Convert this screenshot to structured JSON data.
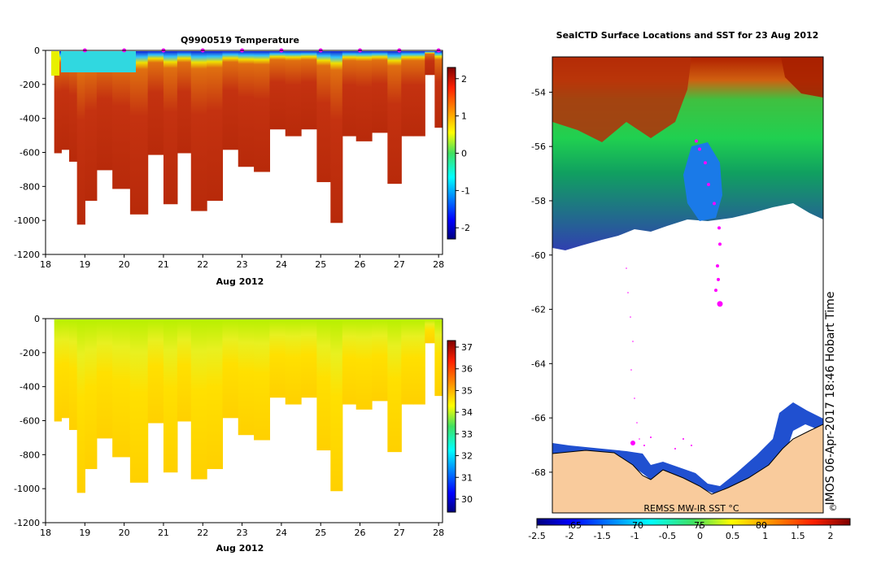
{
  "chart_data": [
    {
      "type": "heatmap",
      "title": "Q9900519  Temperature",
      "xlabel": "Aug 2012",
      "x_ticks": [
        "18",
        "19",
        "20",
        "21",
        "22",
        "23",
        "24",
        "25",
        "26",
        "27",
        "28"
      ],
      "xlim": [
        18,
        28.1
      ],
      "ylim": [
        -1200,
        0
      ],
      "y_ticks": [
        "0",
        "-200",
        "-400",
        "-600",
        "-800",
        "-1000",
        "-1200"
      ],
      "colorbar_ticks": [
        "2",
        "1",
        "0",
        "-1",
        "-2"
      ],
      "colorbar_range": [
        -2.3,
        2.3
      ],
      "profile_times": [
        18.3,
        18.5,
        18.7,
        18.9,
        19.1,
        19.5,
        19.9,
        20.4,
        20.8,
        21.2,
        21.5,
        21.9,
        22.3,
        22.7,
        23.1,
        23.5,
        23.9,
        24.3,
        24.7,
        25.1,
        25.4,
        25.7,
        26.1,
        26.5,
        26.9,
        27.2,
        27.5,
        27.8,
        28.0
      ],
      "profile_max_depth": [
        -600,
        -580,
        -650,
        -1020,
        -880,
        -700,
        -810,
        -960,
        -610,
        -900,
        -600,
        -940,
        -880,
        -580,
        -680,
        -710,
        -460,
        -500,
        -460,
        -770,
        -1010,
        -500,
        -530,
        -480,
        -780,
        -500,
        -500,
        -140,
        -450
      ],
      "surface_markers": [
        19.0,
        20.0,
        21.0,
        22.0,
        23.0,
        24.0,
        25.0,
        26.0,
        27.0,
        28.0
      ]
    },
    {
      "type": "heatmap",
      "title": "",
      "xlabel": "Aug 2012",
      "x_ticks": [
        "18",
        "19",
        "20",
        "21",
        "22",
        "23",
        "24",
        "25",
        "26",
        "27",
        "28"
      ],
      "xlim": [
        18,
        28.1
      ],
      "ylim": [
        -1200,
        0
      ],
      "y_ticks": [
        "0",
        "-200",
        "-400",
        "-600",
        "-800",
        "-1000",
        "-1200"
      ],
      "colorbar_ticks": [
        "37",
        "36",
        "35",
        "34",
        "33",
        "32",
        "31",
        "30"
      ],
      "colorbar_range": [
        29.4,
        37.3
      ]
    },
    {
      "type": "heatmap",
      "title": "SealCTD Surface Locations and SST for 23 Aug 2012",
      "y_ticks": [
        "-54",
        "-56",
        "-58",
        "-60",
        "-62",
        "-64",
        "-66",
        "-68"
      ],
      "ylim": [
        -69.5,
        -52.7
      ],
      "map_x_ticks": [
        "65",
        "70",
        "75",
        "80"
      ],
      "colorbar_label": "REMSS MW-IR SST °C",
      "colorbar_ticks": [
        "-2.5",
        "-2",
        "-1.5",
        "-1",
        "-0.5",
        "0",
        "0.5",
        "1",
        "1.5",
        "2"
      ],
      "colorbar_range": [
        -2.5,
        2.3
      ],
      "track_lat": [
        -55.8,
        -56.1,
        -56.6,
        -57.4,
        -58.1,
        -59.0,
        -59.6,
        -60.4,
        -60.9,
        -61.3,
        -61.8
      ],
      "side_label": "IMOS 06-Apr-2017 18:46 Hobart Time"
    }
  ],
  "colors": {
    "land": "#F9CB9C",
    "marker": "#FF00FF",
    "coast": "#000000",
    "cmap_stops": [
      "#00007F",
      "#0000FF",
      "#0080FF",
      "#00FFFF",
      "#00E080",
      "#40D040",
      "#C0F000",
      "#FFFF00",
      "#FFA000",
      "#FF4000",
      "#CC2000",
      "#7F0000"
    ]
  }
}
